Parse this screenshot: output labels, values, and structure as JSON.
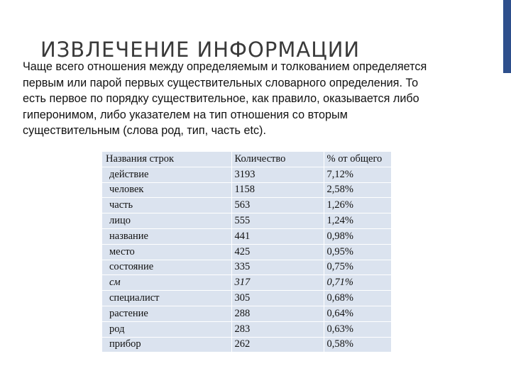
{
  "colors": {
    "accent": "#2e4f8c",
    "cell_bg": "#dbe3ef"
  },
  "slide": {
    "title": "ИЗВЛЕЧЕНИЕ ИНФОРМАЦИИ",
    "body_lines": [
      "Чаще всего отношения между определяемым и толкованием определяется",
      "первым или парой первых существительных словарного определения. То",
      "есть первое по порядку существительное, как правило, оказывается либо",
      "гиперонимом, либо указателем на тип отношения со вторым",
      "существительным (слова род, тип, часть etc)."
    ]
  },
  "table": {
    "headers": [
      "Названия строк",
      "Количество",
      "% от общего"
    ],
    "rows": [
      {
        "name": "действие",
        "count": "3193",
        "percent": "7,12%"
      },
      {
        "name": "человек",
        "count": "1158",
        "percent": "2,58%"
      },
      {
        "name": "часть",
        "count": "563",
        "percent": "1,26%"
      },
      {
        "name": "лицо",
        "count": "555",
        "percent": "1,24%"
      },
      {
        "name": "название",
        "count": "441",
        "percent": "0,98%"
      },
      {
        "name": "место",
        "count": "425",
        "percent": "0,95%"
      },
      {
        "name": "состояние",
        "count": "335",
        "percent": "0,75%"
      },
      {
        "name": "см",
        "count": "317",
        "percent": "0,71%",
        "italic": true
      },
      {
        "name": "специалист",
        "count": "305",
        "percent": "0,68%"
      },
      {
        "name": "растение",
        "count": "288",
        "percent": "0,64%"
      },
      {
        "name": "род",
        "count": "283",
        "percent": "0,63%"
      },
      {
        "name": "прибор",
        "count": "262",
        "percent": "0,58%"
      }
    ]
  }
}
